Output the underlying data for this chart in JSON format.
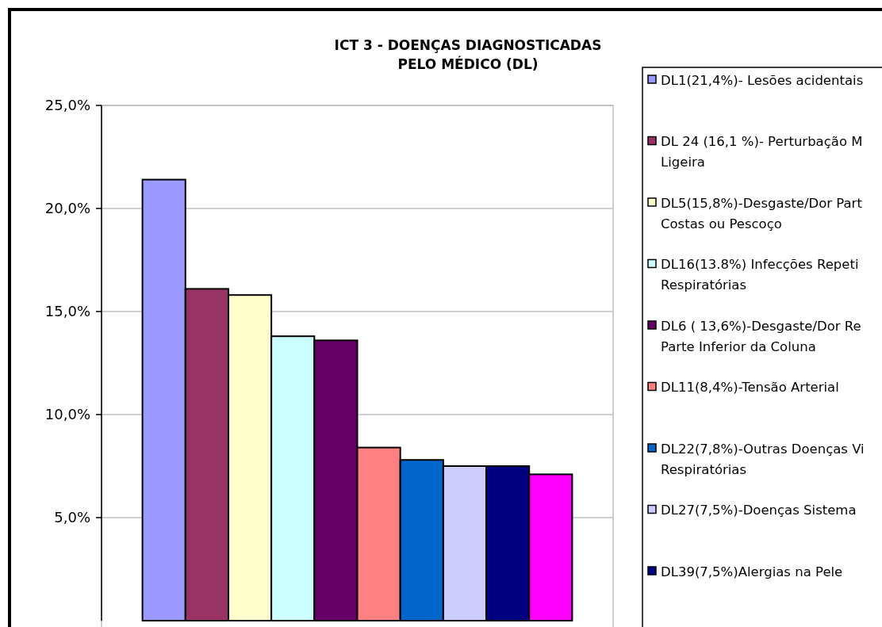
{
  "chart_data": {
    "type": "bar",
    "title": "ICT 3 - DOENÇAS DIAGNOSTICADAS\nPELO MÉDICO (DL)",
    "categories": [
      null
    ],
    "series": [
      {
        "name": "DL1(21,4%)- Lesões acidentais",
        "color": "#9999ff",
        "values": [
          21.4
        ]
      },
      {
        "name": "DL 24 (16,1 %)- Perturbação M\nLigeira",
        "color": "#993366",
        "values": [
          16.1
        ]
      },
      {
        "name": "DL5(15,8%)-Desgaste/Dor Part\nCostas ou Pescoço",
        "color": "#ffffcc",
        "values": [
          15.8
        ]
      },
      {
        "name": "DL16(13.8%) Infecções Repeti\nRespiratórias",
        "color": "#ccffff",
        "values": [
          13.8
        ]
      },
      {
        "name": "DL6 ( 13,6%)-Desgaste/Dor Re\nParte Inferior da Coluna",
        "color": "#660066",
        "values": [
          13.6
        ]
      },
      {
        "name": "DL11(8,4%)-Tensão Arterial",
        "color": "#ff8080",
        "values": [
          8.4
        ]
      },
      {
        "name": "DL22(7,8%)-Outras Doenças Vi\nRespiratórias",
        "color": "#0066cc",
        "values": [
          7.8
        ]
      },
      {
        "name": "DL27(7,5%)-Doenças Sistema",
        "color": "#ccccff",
        "values": [
          7.5
        ]
      },
      {
        "name": "DL39(7,5%)Alergias na Pele",
        "color": "#000080",
        "values": [
          7.5
        ]
      },
      {
        "color": "#ff00ff",
        "values": [
          7.1
        ]
      }
    ],
    "ylim": [
      0,
      25
    ],
    "yticks": [
      {
        "value": 5,
        "label": "5,0%"
      },
      {
        "value": 10,
        "label": "10,0%"
      },
      {
        "value": 15,
        "label": "15,0%"
      },
      {
        "value": 20,
        "label": "20,0%"
      },
      {
        "value": 25,
        "label": "25,0%"
      }
    ],
    "grid": "y",
    "legend": "right"
  }
}
